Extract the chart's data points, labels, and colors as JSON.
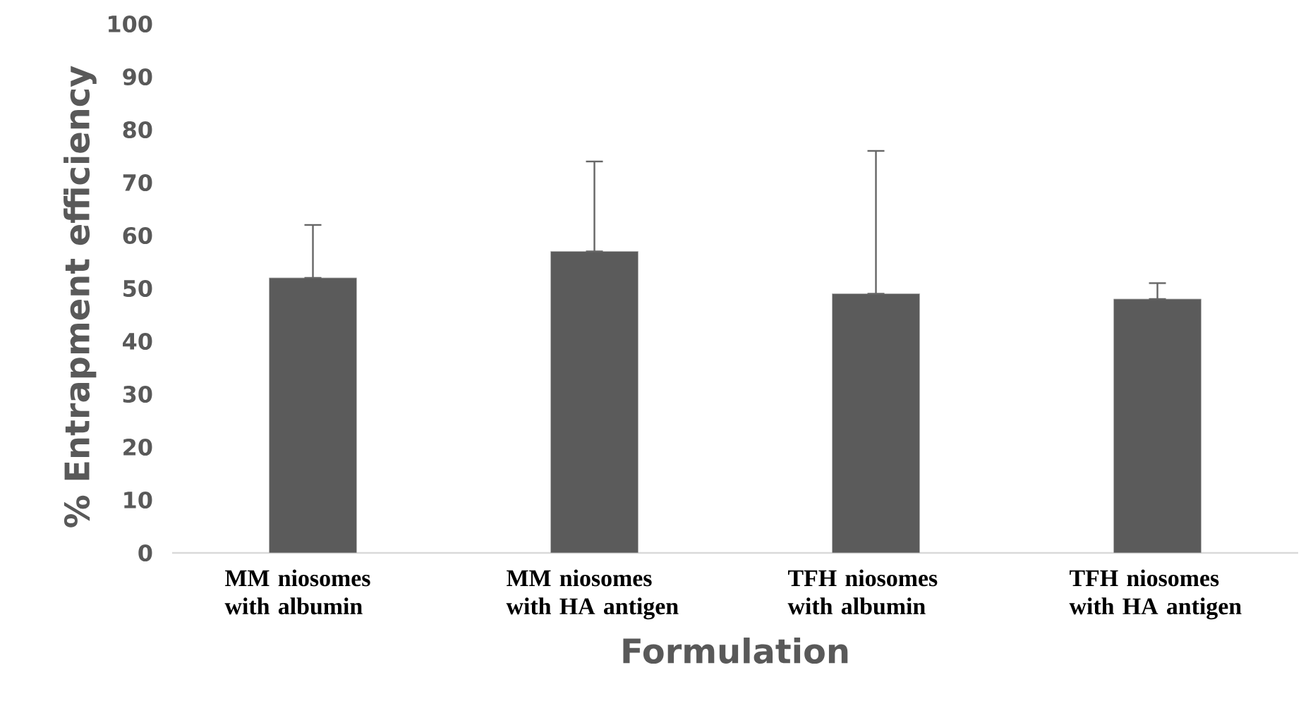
{
  "chart_data": {
    "type": "bar",
    "xlabel": "Formulation",
    "ylabel": "% Entrapment efficiency",
    "categories": [
      "MM niosomes with albumin",
      "MM niosomes with HA antigen",
      "TFH niosomes with albumin",
      "TFH niosomes with HA antigen"
    ],
    "values": [
      52,
      57,
      49,
      48
    ],
    "errors": [
      [
        52,
        62
      ],
      [
        57,
        74
      ],
      [
        49,
        76
      ],
      [
        48,
        51
      ]
    ],
    "color": "#5b5b5b",
    "ylim": [
      0,
      100
    ],
    "yticks": [
      0,
      10,
      20,
      30,
      40,
      50,
      60,
      70,
      80,
      90,
      100
    ]
  }
}
